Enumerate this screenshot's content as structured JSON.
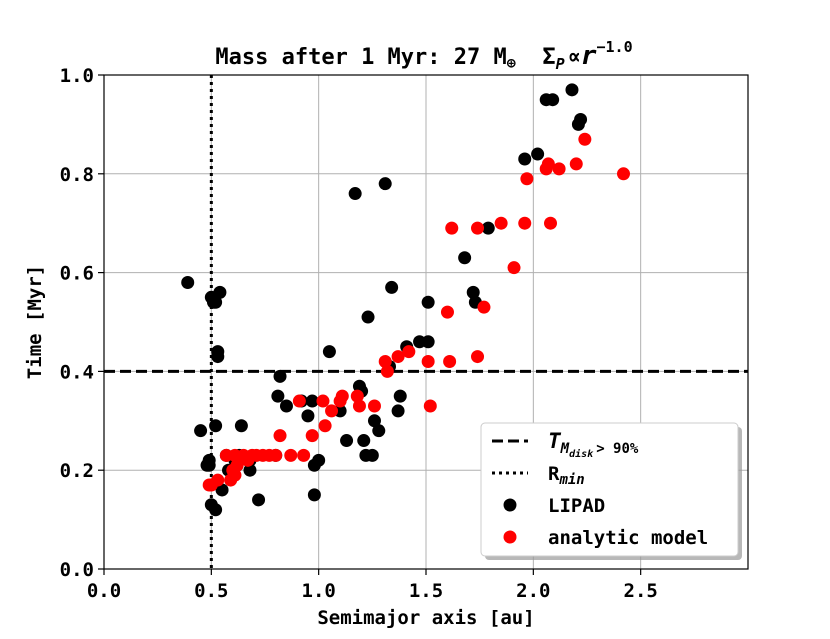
{
  "chart_data": {
    "type": "scatter",
    "title_prefix": "Mass after 1 Myr: 27 M",
    "title_mass_symbol": "⊕",
    "title_sigma": "Σ",
    "title_sigma_sub": "P",
    "title_prop": "∝",
    "title_r": "r",
    "title_exponent": "−1.0",
    "xlabel": "Semimajor axis [au]",
    "ylabel": "Time [Myr]",
    "xlim": [
      0.0,
      3.0
    ],
    "ylim": [
      0.0,
      1.0
    ],
    "xticks": [
      0.0,
      0.5,
      1.0,
      1.5,
      2.0,
      2.5
    ],
    "xtick_labels": [
      "0.0",
      "0.5",
      "1.0",
      "1.5",
      "2.0",
      "2.5"
    ],
    "yticks": [
      0.0,
      0.2,
      0.4,
      0.6,
      0.8,
      1.0
    ],
    "ytick_labels": [
      "0.0",
      "0.2",
      "0.4",
      "0.6",
      "0.8",
      "1.0"
    ],
    "grid": true,
    "hline_y": 0.4,
    "vline_x": 0.5,
    "legend_position": "lower right",
    "legend": {
      "tdisk_main": "T",
      "tdisk_sub": "M",
      "tdisk_subsub": "disk",
      "tdisk_cond": "> 90%",
      "rmin_main": "R",
      "rmin_sub": "min",
      "lipad": "LIPAD",
      "analytic": "analytic model"
    },
    "series": [
      {
        "name": "LIPAD",
        "color": "#000000",
        "points": [
          [
            0.39,
            0.58
          ],
          [
            0.45,
            0.28
          ],
          [
            0.48,
            0.21
          ],
          [
            0.49,
            0.22
          ],
          [
            0.49,
            0.21
          ],
          [
            0.5,
            0.55
          ],
          [
            0.51,
            0.54
          ],
          [
            0.52,
            0.54
          ],
          [
            0.52,
            0.29
          ],
          [
            0.5,
            0.13
          ],
          [
            0.52,
            0.12
          ],
          [
            0.53,
            0.43
          ],
          [
            0.53,
            0.44
          ],
          [
            0.54,
            0.56
          ],
          [
            0.55,
            0.16
          ],
          [
            0.57,
            0.23
          ],
          [
            0.58,
            0.2
          ],
          [
            0.6,
            0.2
          ],
          [
            0.61,
            0.22
          ],
          [
            0.62,
            0.21
          ],
          [
            0.63,
            0.23
          ],
          [
            0.64,
            0.29
          ],
          [
            0.68,
            0.22
          ],
          [
            0.68,
            0.2
          ],
          [
            0.72,
            0.14
          ],
          [
            0.8,
            0.23
          ],
          [
            0.81,
            0.35
          ],
          [
            0.82,
            0.39
          ],
          [
            0.85,
            0.33
          ],
          [
            0.92,
            0.34
          ],
          [
            0.95,
            0.31
          ],
          [
            0.97,
            0.34
          ],
          [
            0.98,
            0.15
          ],
          [
            0.98,
            0.21
          ],
          [
            1.0,
            0.22
          ],
          [
            1.05,
            0.44
          ],
          [
            1.1,
            0.32
          ],
          [
            1.13,
            0.26
          ],
          [
            1.17,
            0.76
          ],
          [
            1.19,
            0.37
          ],
          [
            1.2,
            0.36
          ],
          [
            1.21,
            0.26
          ],
          [
            1.22,
            0.23
          ],
          [
            1.23,
            0.51
          ],
          [
            1.25,
            0.23
          ],
          [
            1.26,
            0.3
          ],
          [
            1.28,
            0.28
          ],
          [
            1.31,
            0.78
          ],
          [
            1.33,
            0.41
          ],
          [
            1.34,
            0.57
          ],
          [
            1.37,
            0.32
          ],
          [
            1.38,
            0.35
          ],
          [
            1.41,
            0.45
          ],
          [
            1.47,
            0.46
          ],
          [
            1.51,
            0.46
          ],
          [
            1.51,
            0.54
          ],
          [
            1.68,
            0.63
          ],
          [
            1.72,
            0.56
          ],
          [
            1.73,
            0.54
          ],
          [
            1.79,
            0.69
          ],
          [
            1.96,
            0.83
          ],
          [
            2.02,
            0.84
          ],
          [
            2.06,
            0.95
          ],
          [
            2.09,
            0.95
          ],
          [
            2.18,
            0.97
          ],
          [
            2.21,
            0.9
          ],
          [
            2.22,
            0.91
          ]
        ]
      },
      {
        "name": "analytic model",
        "color": "#ff0000",
        "points": [
          [
            0.49,
            0.17
          ],
          [
            0.5,
            0.17
          ],
          [
            0.53,
            0.18
          ],
          [
            0.57,
            0.23
          ],
          [
            0.59,
            0.18
          ],
          [
            0.6,
            0.2
          ],
          [
            0.61,
            0.23
          ],
          [
            0.61,
            0.19
          ],
          [
            0.62,
            0.21
          ],
          [
            0.65,
            0.23
          ],
          [
            0.67,
            0.22
          ],
          [
            0.69,
            0.23
          ],
          [
            0.71,
            0.23
          ],
          [
            0.74,
            0.23
          ],
          [
            0.77,
            0.23
          ],
          [
            0.8,
            0.23
          ],
          [
            0.82,
            0.27
          ],
          [
            0.87,
            0.23
          ],
          [
            0.91,
            0.34
          ],
          [
            0.93,
            0.23
          ],
          [
            0.97,
            0.27
          ],
          [
            1.02,
            0.34
          ],
          [
            1.03,
            0.29
          ],
          [
            1.06,
            0.32
          ],
          [
            1.1,
            0.34
          ],
          [
            1.11,
            0.35
          ],
          [
            1.18,
            0.35
          ],
          [
            1.19,
            0.33
          ],
          [
            1.26,
            0.33
          ],
          [
            1.31,
            0.42
          ],
          [
            1.32,
            0.4
          ],
          [
            1.37,
            0.43
          ],
          [
            1.42,
            0.44
          ],
          [
            1.51,
            0.42
          ],
          [
            1.52,
            0.33
          ],
          [
            1.6,
            0.52
          ],
          [
            1.61,
            0.42
          ],
          [
            1.62,
            0.69
          ],
          [
            1.74,
            0.43
          ],
          [
            1.74,
            0.69
          ],
          [
            1.77,
            0.53
          ],
          [
            1.85,
            0.7
          ],
          [
            1.91,
            0.61
          ],
          [
            1.96,
            0.7
          ],
          [
            1.97,
            0.79
          ],
          [
            2.08,
            0.7
          ],
          [
            2.06,
            0.81
          ],
          [
            2.07,
            0.82
          ],
          [
            2.12,
            0.81
          ],
          [
            2.2,
            0.82
          ],
          [
            2.24,
            0.87
          ],
          [
            2.42,
            0.8
          ]
        ]
      }
    ]
  }
}
